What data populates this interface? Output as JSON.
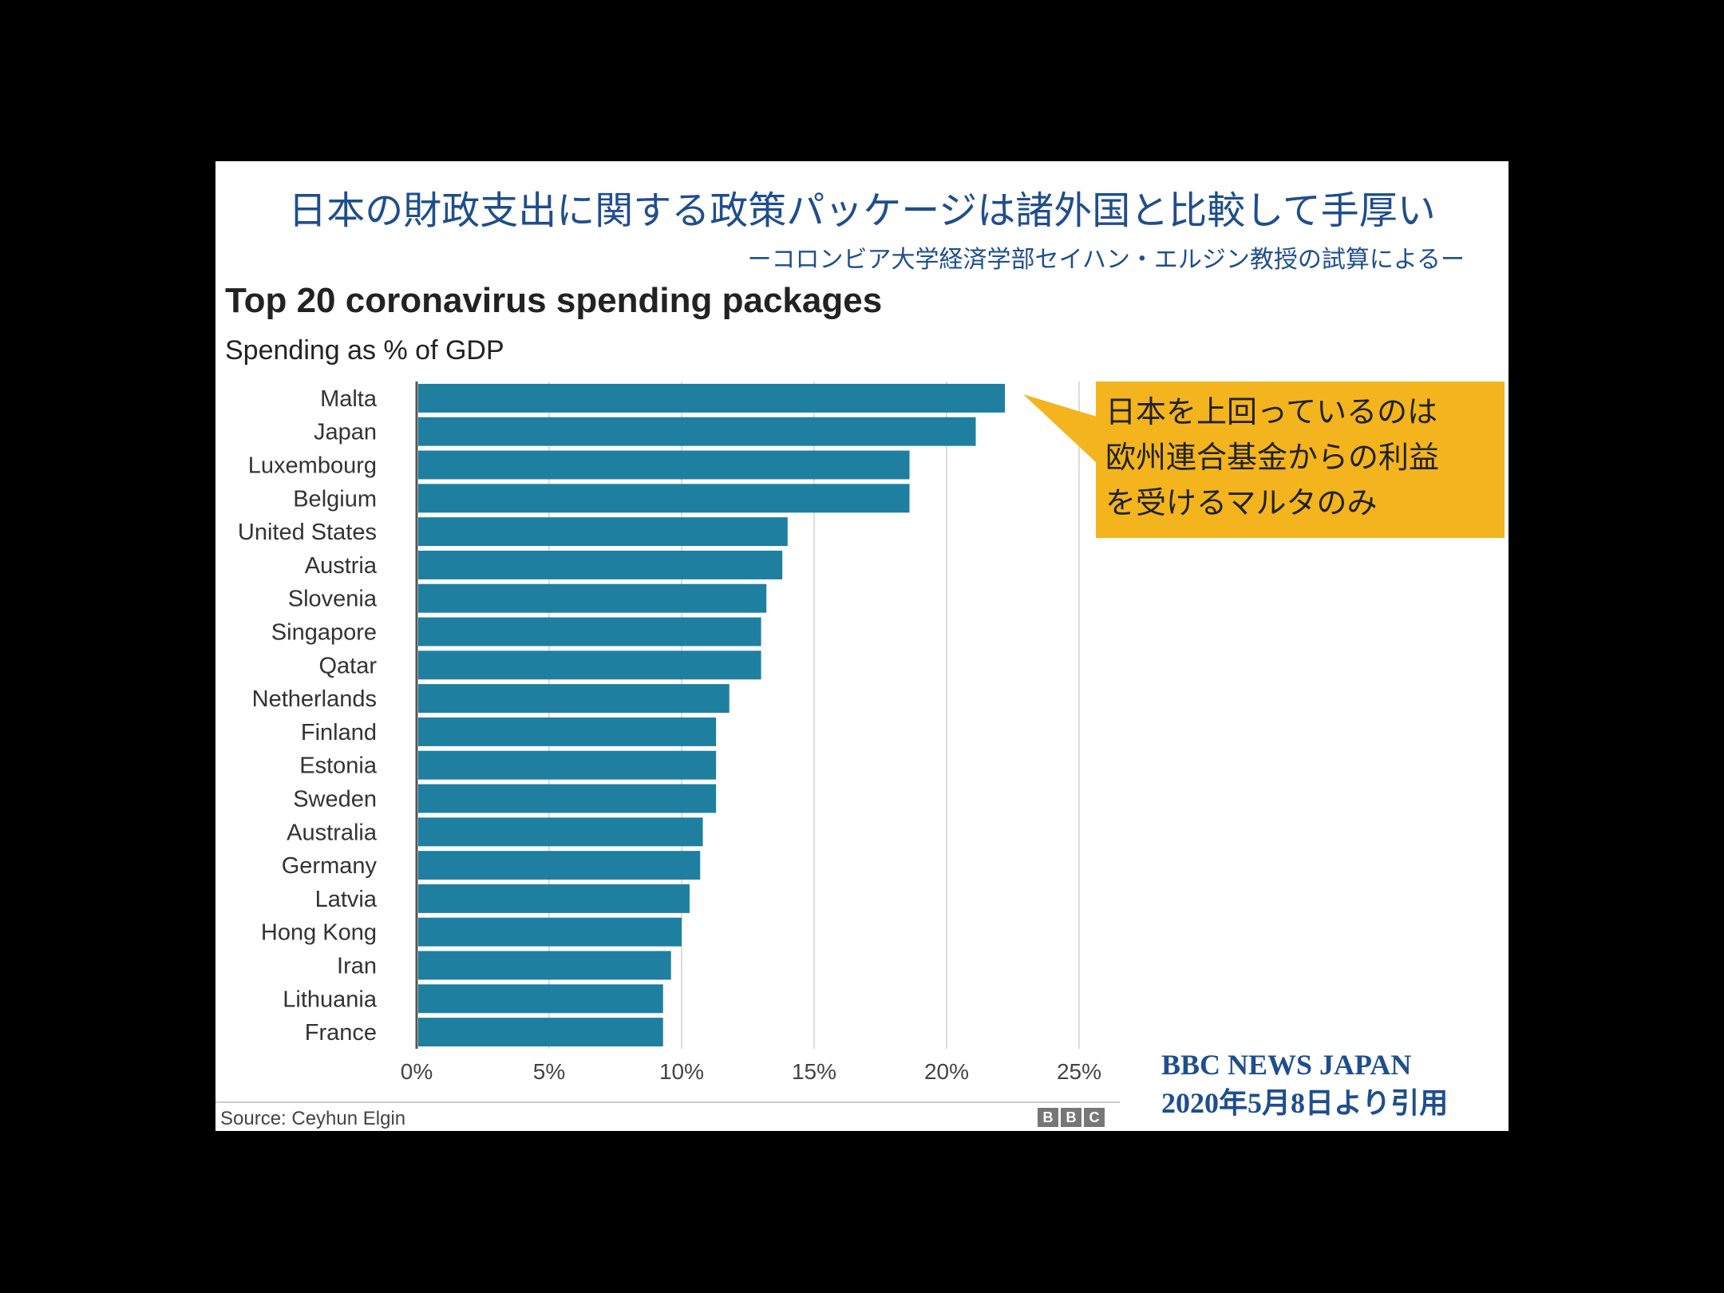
{
  "header": {
    "title": "日本の財政支出に関する政策パッケージは諸外国と比較して手厚い",
    "subtitle": "ーコロンビア大学経済学部セイハン・エルジン教授の試算によるー"
  },
  "callout": {
    "lines": [
      "日本を上回っているのは",
      "欧州連合基金からの利益",
      "を受けるマルタのみ"
    ],
    "color": "#f3b41e"
  },
  "footer": {
    "source": "Source: Ceyhun Elgin",
    "logo_letters": [
      "B",
      "B",
      "C"
    ],
    "credit_line1": "BBC NEWS JAPAN",
    "credit_line2": "2020年5月8日より引用"
  },
  "chart_data": {
    "type": "bar",
    "orientation": "horizontal",
    "title": "Top 20 coronavirus spending packages",
    "subtitle": "Spending as % of GDP",
    "categories": [
      "Malta",
      "Japan",
      "Luxembourg",
      "Belgium",
      "United States",
      "Austria",
      "Slovenia",
      "Singapore",
      "Qatar",
      "Netherlands",
      "Finland",
      "Estonia",
      "Sweden",
      "Australia",
      "Germany",
      "Latvia",
      "Hong Kong",
      "Iran",
      "Lithuania",
      "France"
    ],
    "values": [
      22.2,
      21.1,
      18.6,
      18.6,
      14.0,
      13.8,
      13.2,
      13.0,
      13.0,
      11.8,
      11.3,
      11.3,
      11.3,
      10.8,
      10.7,
      10.3,
      10.0,
      9.6,
      9.3,
      9.3
    ],
    "xlim": [
      0,
      25
    ],
    "xticks": [
      0,
      5,
      10,
      15,
      20,
      25
    ],
    "xtick_labels": [
      "0%",
      "5%",
      "10%",
      "15%",
      "20%",
      "25%"
    ],
    "grid": true,
    "bar_color": "#1e7fa0",
    "grid_color": "#dddddd"
  }
}
